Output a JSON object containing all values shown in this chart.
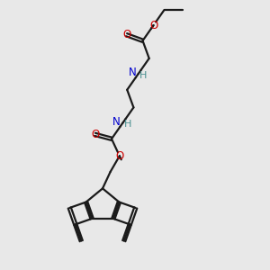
{
  "background_color": "#e8e8e8",
  "bond_color": "#1a1a1a",
  "N_color": "#0000cd",
  "O_color": "#cc0000",
  "H_color": "#4a9090",
  "linewidth": 1.6,
  "figsize": [
    3.0,
    3.0
  ],
  "dpi": 100,
  "xlim": [
    0,
    10
  ],
  "ylim": [
    0,
    10
  ]
}
